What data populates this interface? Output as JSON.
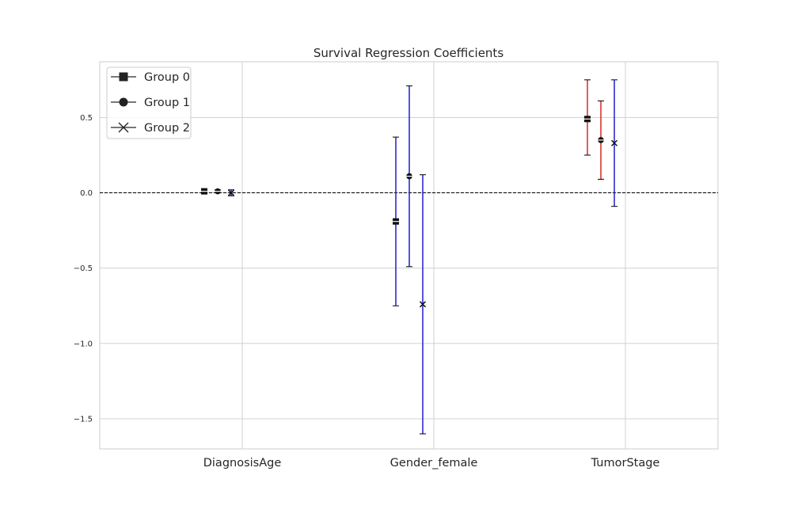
{
  "chart_data": {
    "type": "errorbar",
    "title": "Survival Regression Coefficients",
    "xlabel": "",
    "ylabel": "",
    "categories": [
      "DiagnosisAge",
      "Gender_female",
      "TumorStage"
    ],
    "ylim": [
      -1.7,
      0.87
    ],
    "yticks": [
      0.5,
      0.0,
      -0.5,
      -1.0,
      -1.5
    ],
    "ytick_labels": [
      "0.5",
      "0.0",
      "−0.5",
      "−1.0",
      "−1.5"
    ],
    "grid": true,
    "reference_line": {
      "y": 0.0,
      "style": "dashed",
      "color": "#000000"
    },
    "legend": {
      "placement": "top-left"
    },
    "series": [
      {
        "name": "Group 0",
        "marker": "square",
        "points": [
          {
            "category": "DiagnosisAge",
            "value": 0.01,
            "lower": 0.0,
            "upper": 0.02,
            "color": "#1f1fd1"
          },
          {
            "category": "Gender_female",
            "value": -0.19,
            "lower": -0.75,
            "upper": 0.37,
            "color": "#1f1fd1"
          },
          {
            "category": "TumorStage",
            "value": 0.49,
            "lower": 0.25,
            "upper": 0.75,
            "color": "#d62728"
          }
        ]
      },
      {
        "name": "Group 1",
        "marker": "circle",
        "points": [
          {
            "category": "DiagnosisAge",
            "value": 0.01,
            "lower": 0.0,
            "upper": 0.02,
            "color": "#1f1fd1"
          },
          {
            "category": "Gender_female",
            "value": 0.11,
            "lower": -0.49,
            "upper": 0.71,
            "color": "#1f1fd1"
          },
          {
            "category": "TumorStage",
            "value": 0.35,
            "lower": 0.09,
            "upper": 0.61,
            "color": "#d62728"
          }
        ]
      },
      {
        "name": "Group 2",
        "marker": "x",
        "points": [
          {
            "category": "DiagnosisAge",
            "value": 0.0,
            "lower": -0.02,
            "upper": 0.02,
            "color": "#1f1fd1"
          },
          {
            "category": "Gender_female",
            "value": -0.74,
            "lower": -1.6,
            "upper": 0.12,
            "color": "#1f1fd1"
          },
          {
            "category": "TumorStage",
            "value": 0.33,
            "lower": -0.09,
            "upper": 0.75,
            "color": "#1f1fd1"
          }
        ]
      }
    ]
  }
}
